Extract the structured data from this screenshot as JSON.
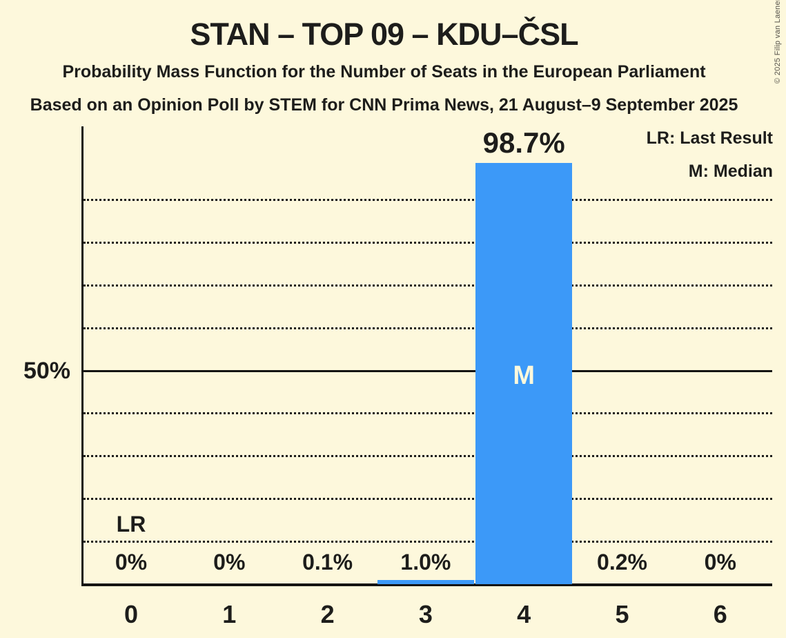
{
  "copyright": "© 2025 Filip van Laenen",
  "chart_data": {
    "type": "bar",
    "title": "STAN – TOP 09 – KDU–ČSL",
    "subtitle": "Probability Mass Function for the Number of Seats in the European Parliament",
    "source_line": "Based on an Opinion Poll by STEM for CNN Prima News, 21 August–9 September 2025",
    "xlabel": "",
    "ylabel": "",
    "categories": [
      "0",
      "1",
      "2",
      "3",
      "4",
      "5",
      "6"
    ],
    "values": [
      0,
      0,
      0.1,
      1.0,
      98.7,
      0.2,
      0
    ],
    "value_labels": [
      "0%",
      "0%",
      "0.1%",
      "1.0%",
      "98.7%",
      "0.2%",
      "0%"
    ],
    "y_axis": {
      "tick_label": "50%",
      "tick_value": 50,
      "ylim": [
        0,
        107
      ],
      "gridlines_pct": [
        10,
        20,
        30,
        40,
        50,
        60,
        70,
        80,
        90
      ],
      "solid_pct": 50,
      "grid_style": "dotted"
    },
    "legend": [
      {
        "label": "LR: Last Result"
      },
      {
        "label": "M: Median"
      }
    ],
    "annotations": [
      {
        "label": "LR",
        "seat_index": 0
      },
      {
        "label": "M",
        "seat_index": 4
      }
    ],
    "colors": {
      "bar": "#3C99F8",
      "background": "#FDF8DC",
      "text": "#1D1D1B",
      "median_letter": "#FDF8DC"
    }
  }
}
